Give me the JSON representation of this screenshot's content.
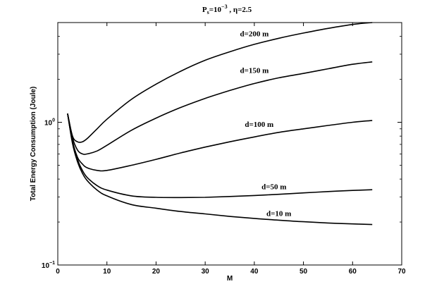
{
  "chart_data": {
    "type": "line",
    "title": {
      "p": "P",
      "sub": "s",
      "eq": "=10",
      "sup": "−3",
      "rest": " , η=2.5"
    },
    "xlabel": "M",
    "ylabel": "Total Energy Consumption (Joule)",
    "xlim": [
      0,
      70
    ],
    "ylim": [
      0.1,
      5.0
    ],
    "yscale": "log",
    "grid": false,
    "xticks": [
      {
        "v": 0,
        "label": "0"
      },
      {
        "v": 10,
        "label": "10"
      },
      {
        "v": 20,
        "label": "20"
      },
      {
        "v": 30,
        "label": "30"
      },
      {
        "v": 40,
        "label": "40"
      },
      {
        "v": 50,
        "label": "50"
      },
      {
        "v": 60,
        "label": "60"
      },
      {
        "v": 70,
        "label": "70"
      }
    ],
    "yticks": [
      {
        "v": 0.1,
        "base": "10",
        "exp": "−1"
      },
      {
        "v": 1.0,
        "base": "10",
        "exp": "0"
      }
    ],
    "series": [
      {
        "name": "d=200 m",
        "x": [
          2,
          3,
          4,
          5,
          6,
          8,
          10,
          15,
          20,
          25,
          30,
          35,
          40,
          45,
          50,
          55,
          60,
          64
        ],
        "y": [
          1.15,
          0.8,
          0.73,
          0.73,
          0.77,
          0.9,
          1.05,
          1.45,
          1.85,
          2.28,
          2.72,
          3.12,
          3.52,
          3.88,
          4.22,
          4.55,
          4.85,
          5.0
        ]
      },
      {
        "name": "d=150 m",
        "x": [
          2,
          3,
          4,
          5,
          6,
          8,
          10,
          15,
          20,
          25,
          30,
          35,
          40,
          45,
          50,
          55,
          60,
          64
        ],
        "y": [
          1.15,
          0.78,
          0.64,
          0.6,
          0.6,
          0.63,
          0.69,
          0.88,
          1.07,
          1.27,
          1.47,
          1.67,
          1.87,
          2.05,
          2.2,
          2.37,
          2.55,
          2.65
        ]
      },
      {
        "name": "d=100 m",
        "x": [
          2,
          3,
          4,
          5,
          6,
          8,
          10,
          15,
          20,
          25,
          30,
          35,
          40,
          45,
          50,
          55,
          60,
          64
        ],
        "y": [
          1.15,
          0.74,
          0.57,
          0.51,
          0.48,
          0.46,
          0.46,
          0.5,
          0.55,
          0.61,
          0.67,
          0.73,
          0.79,
          0.85,
          0.9,
          0.95,
          1.0,
          1.03
        ]
      },
      {
        "name": "d=50 m",
        "x": [
          2,
          3,
          4,
          5,
          6,
          8,
          10,
          15,
          20,
          25,
          30,
          35,
          40,
          45,
          50,
          55,
          60,
          64
        ],
        "y": [
          1.15,
          0.72,
          0.55,
          0.46,
          0.41,
          0.36,
          0.335,
          0.305,
          0.298,
          0.297,
          0.298,
          0.302,
          0.307,
          0.313,
          0.32,
          0.327,
          0.333,
          0.337
        ]
      },
      {
        "name": "d=10 m",
        "x": [
          2,
          3,
          4,
          5,
          6,
          8,
          10,
          15,
          20,
          25,
          30,
          35,
          40,
          45,
          50,
          55,
          60,
          64
        ],
        "y": [
          1.15,
          0.71,
          0.53,
          0.44,
          0.39,
          0.335,
          0.305,
          0.265,
          0.25,
          0.237,
          0.228,
          0.219,
          0.212,
          0.206,
          0.201,
          0.197,
          0.194,
          0.192
        ]
      }
    ],
    "annotations": [
      {
        "series": 0,
        "text": "d=200 m",
        "x": 40,
        "y": 4.0
      },
      {
        "series": 1,
        "text": "d=150 m",
        "x": 40,
        "y": 2.22
      },
      {
        "series": 2,
        "text": "d=100 m",
        "x": 41,
        "y": 0.93
      },
      {
        "series": 3,
        "text": "d=50 m",
        "x": 44,
        "y": 0.34
      },
      {
        "series": 4,
        "text": "d=10 m",
        "x": 45,
        "y": 0.22
      }
    ]
  }
}
